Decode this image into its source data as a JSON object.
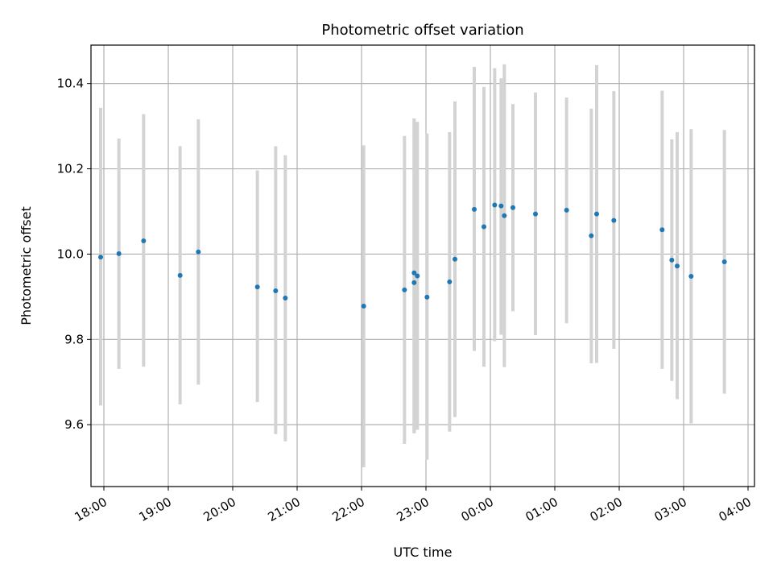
{
  "chart_data": {
    "type": "scatter",
    "title": "Photometric offset variation",
    "xlabel": "UTC time",
    "ylabel": "Photometric offset",
    "x_axis_kind": "time",
    "x_start": "17:48",
    "x_end": "04:06",
    "ylim": [
      9.455,
      10.49
    ],
    "grid": true,
    "x_ticks": [
      "18:00",
      "19:00",
      "20:00",
      "21:00",
      "22:00",
      "23:00",
      "00:00",
      "01:00",
      "02:00",
      "03:00",
      "04:00"
    ],
    "y_ticks": [
      "9.6",
      "9.8",
      "10.0",
      "10.2",
      "10.4"
    ],
    "y_tick_values": [
      9.6,
      9.8,
      10.0,
      10.2,
      10.4
    ],
    "colors": {
      "point": "#1f77b4",
      "errorbar": "#d3d3d3",
      "grid": "#b0b0b0"
    },
    "points": [
      {
        "t": "17:57",
        "y": 9.993,
        "lo": 9.645,
        "hi": 10.343
      },
      {
        "t": "18:14",
        "y": 10.001,
        "lo": 9.731,
        "hi": 10.271
      },
      {
        "t": "18:37",
        "y": 10.031,
        "lo": 9.736,
        "hi": 10.328
      },
      {
        "t": "19:11",
        "y": 9.95,
        "lo": 9.648,
        "hi": 10.253
      },
      {
        "t": "19:28",
        "y": 10.005,
        "lo": 9.694,
        "hi": 10.316
      },
      {
        "t": "20:23",
        "y": 9.923,
        "lo": 9.653,
        "hi": 10.196
      },
      {
        "t": "20:40",
        "y": 9.914,
        "lo": 9.578,
        "hi": 10.253
      },
      {
        "t": "20:49",
        "y": 9.897,
        "lo": 9.561,
        "hi": 10.232
      },
      {
        "t": "22:02",
        "y": 9.878,
        "lo": 9.5,
        "hi": 10.255
      },
      {
        "t": "22:40",
        "y": 9.916,
        "lo": 9.555,
        "hi": 10.277
      },
      {
        "t": "22:49",
        "y": 9.956,
        "lo": 9.58,
        "hi": 10.318
      },
      {
        "t": "22:49",
        "y": 9.933,
        "lo": 9.58,
        "hi": 10.318
      },
      {
        "t": "22:52",
        "y": 9.949,
        "lo": 9.588,
        "hi": 10.31
      },
      {
        "t": "23:01",
        "y": 9.899,
        "lo": 9.518,
        "hi": 10.283
      },
      {
        "t": "23:22",
        "y": 9.935,
        "lo": 9.584,
        "hi": 10.286
      },
      {
        "t": "23:27",
        "y": 9.988,
        "lo": 9.618,
        "hi": 10.358
      },
      {
        "t": "23:45",
        "y": 10.105,
        "lo": 9.773,
        "hi": 10.439
      },
      {
        "t": "23:54",
        "y": 10.064,
        "lo": 9.736,
        "hi": 10.392
      },
      {
        "t": "00:04",
        "y": 10.115,
        "lo": 9.796,
        "hi": 10.436
      },
      {
        "t": "00:10",
        "y": 10.113,
        "lo": 9.811,
        "hi": 10.412
      },
      {
        "t": "00:13",
        "y": 10.09,
        "lo": 9.735,
        "hi": 10.445
      },
      {
        "t": "00:21",
        "y": 10.109,
        "lo": 9.866,
        "hi": 10.352
      },
      {
        "t": "00:42",
        "y": 10.094,
        "lo": 9.81,
        "hi": 10.379
      },
      {
        "t": "01:11",
        "y": 10.103,
        "lo": 9.838,
        "hi": 10.367
      },
      {
        "t": "01:34",
        "y": 10.043,
        "lo": 9.744,
        "hi": 10.341
      },
      {
        "t": "01:39",
        "y": 10.094,
        "lo": 9.745,
        "hi": 10.443
      },
      {
        "t": "01:55",
        "y": 10.079,
        "lo": 9.778,
        "hi": 10.382
      },
      {
        "t": "02:40",
        "y": 10.057,
        "lo": 9.731,
        "hi": 10.383
      },
      {
        "t": "02:49",
        "y": 9.986,
        "lo": 9.703,
        "hi": 10.269
      },
      {
        "t": "02:54",
        "y": 9.972,
        "lo": 9.66,
        "hi": 10.286
      },
      {
        "t": "03:07",
        "y": 9.948,
        "lo": 9.603,
        "hi": 10.293
      },
      {
        "t": "03:38",
        "y": 9.982,
        "lo": 9.673,
        "hi": 10.291
      }
    ]
  }
}
